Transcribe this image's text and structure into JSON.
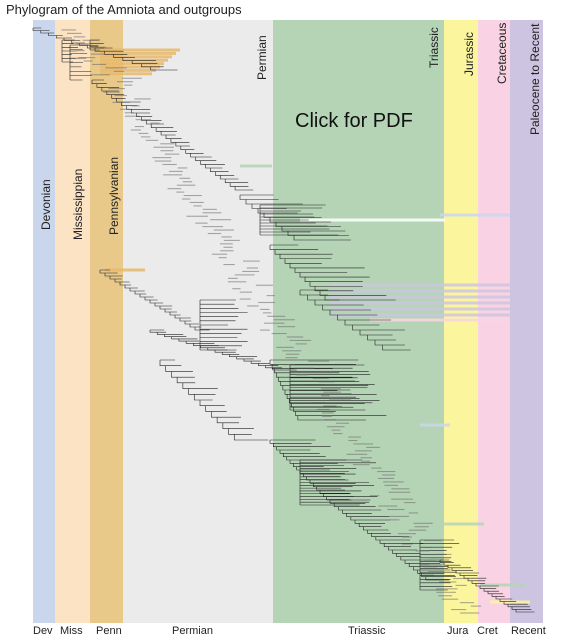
{
  "title": "Phylogram of the Amniota and outgroups",
  "pdf_link_label": "Click for PDF",
  "periods": [
    {
      "key": "devonian",
      "band_label": "Devonian",
      "bottom_label": "Dev",
      "color": "#c9d6ec"
    },
    {
      "key": "mississippian",
      "band_label": "Mississippian",
      "bottom_label": "Miss",
      "color": "#fbe3c3"
    },
    {
      "key": "pennsylvanian",
      "band_label": "Pennsylvanian",
      "bottom_label": "Penn",
      "color": "#e8c98a"
    },
    {
      "key": "permian",
      "band_label": "Permian",
      "bottom_label": "Permian",
      "color": "#ebebeb"
    },
    {
      "key": "triassic",
      "band_label": "Triassic",
      "bottom_label": "Triassic",
      "color": "#b5d4b6"
    },
    {
      "key": "jurassic",
      "band_label": "Jurassic",
      "bottom_label": "Jura",
      "color": "#fbf59e"
    },
    {
      "key": "cretaceous",
      "band_label": "Cretaceous",
      "bottom_label": "Cret",
      "color": "#f9d3e3"
    },
    {
      "key": "recent",
      "band_label": "Paleocene to Recent",
      "bottom_label": "Recent",
      "color": "#cdc4e1"
    }
  ]
}
